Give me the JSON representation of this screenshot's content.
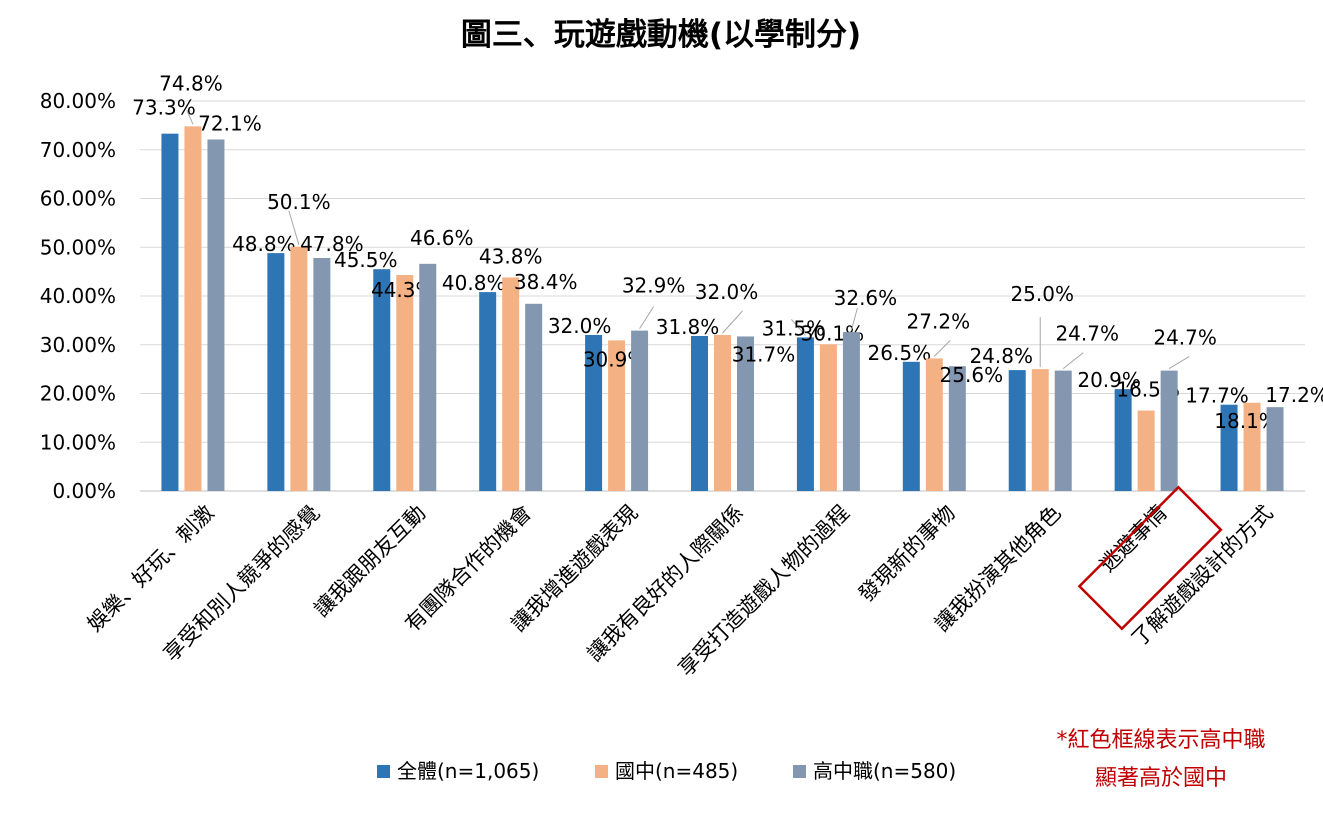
{
  "chart_data": {
    "type": "bar",
    "title": "圖三、玩遊戲動機(以學制分)",
    "xlabel": "",
    "ylabel": "",
    "ylim": [
      0,
      80
    ],
    "yticks": [
      "0.00%",
      "10.00%",
      "20.00%",
      "30.00%",
      "40.00%",
      "50.00%",
      "60.00%",
      "70.00%",
      "80.00%"
    ],
    "grid": true,
    "legend_position": "bottom",
    "categories": [
      "娛樂、好玩、刺激",
      "享受和別人競爭的感覺",
      "讓我跟朋友互動",
      "有團隊合作的機會",
      "讓我增進遊戲表現",
      "讓我有良好的人際關係",
      "享受打造遊戲人物的過程",
      "發現新的事物",
      "讓我扮演其他角色",
      "逃避事情",
      "了解遊戲設計的方式"
    ],
    "series": [
      {
        "name": "全體(n=1,065)",
        "color": "#2e75b6",
        "values": [
          73.3,
          48.8,
          45.5,
          40.8,
          32.0,
          31.8,
          31.5,
          26.5,
          24.8,
          20.9,
          17.7
        ],
        "labels": [
          "73.3%",
          "48.8%",
          "45.5%",
          "40.8%",
          "32.0%",
          "31.8%",
          "31.5%",
          "26.5%",
          "24.8%",
          "20.9%",
          "17.7%"
        ]
      },
      {
        "name": "國中(n=485)",
        "color": "#f4b183",
        "values": [
          74.8,
          50.1,
          44.3,
          43.8,
          30.9,
          32.0,
          30.1,
          27.2,
          25.0,
          16.5,
          18.1
        ],
        "labels": [
          "74.8%",
          "50.1%",
          "44.3%",
          "43.8%",
          "30.9%",
          "32.0%",
          "30.1%",
          "27.2%",
          "25.0%",
          "16.5%",
          "18.1%"
        ]
      },
      {
        "name": "高中職(n=580)",
        "color": "#8497b0",
        "values": [
          72.1,
          47.8,
          46.6,
          38.4,
          32.9,
          31.7,
          32.6,
          25.6,
          24.7,
          24.7,
          17.2
        ],
        "labels": [
          "72.1%",
          "47.8%",
          "46.6%",
          "38.4%",
          "32.9%",
          "31.7%",
          "32.6%",
          "25.6%",
          "24.7%",
          "24.7%",
          "17.2%"
        ]
      }
    ],
    "highlighted_category": "逃避事情",
    "highlight_color": "#c00000",
    "annotation": [
      "*紅色框線表示高中職",
      "顯著高於國中"
    ]
  }
}
